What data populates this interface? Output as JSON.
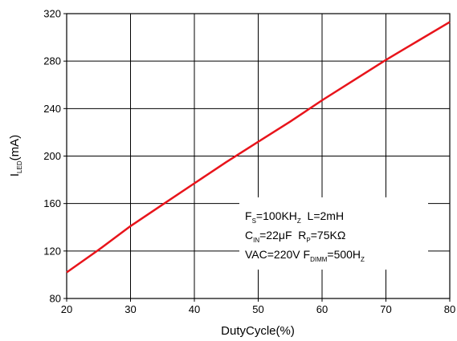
{
  "chart_data": {
    "type": "line",
    "xlabel": "DutyCycle(%)",
    "ylabel_main": "I",
    "ylabel_sub": "LED",
    "ylabel_unit": "(mA)",
    "xlim": [
      20,
      80
    ],
    "ylim": [
      80,
      320
    ],
    "xticks": [
      20,
      30,
      40,
      50,
      60,
      70,
      80
    ],
    "yticks": [
      80,
      120,
      160,
      200,
      240,
      280,
      320
    ],
    "grid": true,
    "series": [
      {
        "color": "#e8141b",
        "x": [
          20,
          25,
          30,
          35,
          40,
          45,
          50,
          55,
          60,
          65,
          70,
          75,
          80
        ],
        "y": [
          102,
          121,
          141,
          159,
          177,
          195,
          212,
          229,
          247,
          264,
          281,
          297,
          313
        ]
      }
    ],
    "annotations": {
      "line1": {
        "a": "F",
        "a_sub": "S",
        "b": "=100KH",
        "b_sub": "Z",
        "c": "  L=2mH"
      },
      "line2": {
        "a": "C",
        "a_sub": "IN",
        "b": "=22μF  R",
        "b_sub": "P",
        "c": "=75KΩ"
      },
      "line3": {
        "a": "VAC=220V F",
        "a_sub": "DIMM",
        "b": "=500H",
        "b_sub": "Z"
      }
    }
  }
}
